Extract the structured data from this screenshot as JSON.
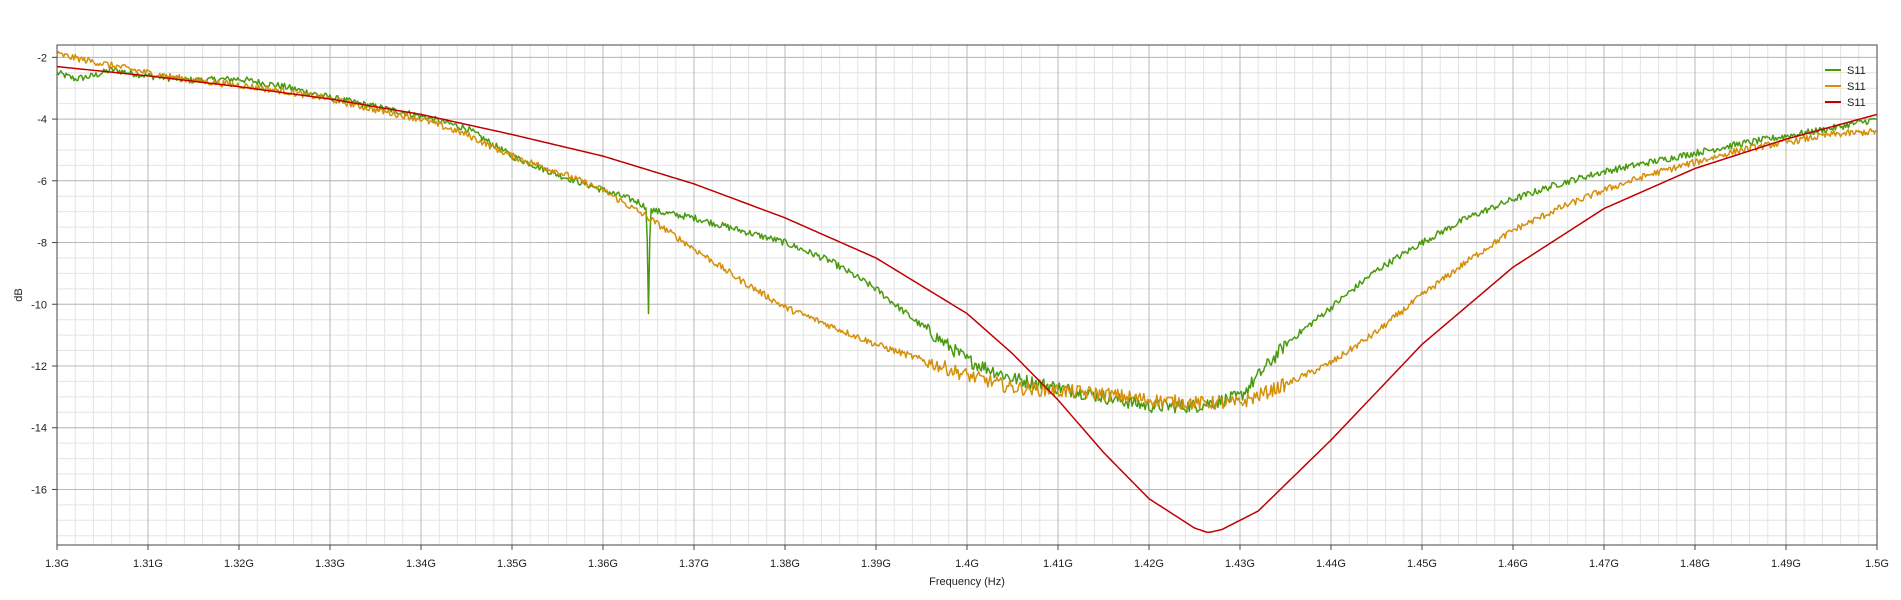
{
  "chart_data": {
    "type": "line",
    "title": "",
    "xlabel": "Frequency (Hz)",
    "ylabel": "dB",
    "xlim": [
      1.3,
      1.5
    ],
    "ylim": [
      -17.8,
      -1.6
    ],
    "x_ticks": [
      1.3,
      1.31,
      1.32,
      1.33,
      1.34,
      1.35,
      1.36,
      1.37,
      1.38,
      1.39,
      1.4,
      1.41,
      1.42,
      1.43,
      1.44,
      1.45,
      1.46,
      1.47,
      1.48,
      1.49,
      1.5
    ],
    "x_tick_labels": [
      "1.3G",
      "1.31G",
      "1.32G",
      "1.33G",
      "1.34G",
      "1.35G",
      "1.36G",
      "1.37G",
      "1.38G",
      "1.39G",
      "1.4G",
      "1.41G",
      "1.42G",
      "1.43G",
      "1.44G",
      "1.45G",
      "1.46G",
      "1.47G",
      "1.48G",
      "1.49G",
      "1.5G"
    ],
    "y_ticks": [
      -2,
      -4,
      -6,
      -8,
      -10,
      -12,
      -14,
      -16
    ],
    "y_tick_labels": [
      "-2",
      "-4",
      "-6",
      "-8",
      "-10",
      "-12",
      "-14",
      "-16"
    ],
    "grid": true,
    "legend_position": "top-right",
    "series": [
      {
        "name": "S11",
        "color": "#4a9a10",
        "x": [
          1.3,
          1.302,
          1.304,
          1.306,
          1.31,
          1.315,
          1.32,
          1.325,
          1.33,
          1.335,
          1.34,
          1.345,
          1.35,
          1.355,
          1.36,
          1.364,
          1.3648,
          1.365,
          1.3652,
          1.366,
          1.37,
          1.375,
          1.38,
          1.385,
          1.39,
          1.395,
          1.4,
          1.405,
          1.41,
          1.415,
          1.42,
          1.425,
          1.43,
          1.435,
          1.44,
          1.445,
          1.45,
          1.455,
          1.46,
          1.465,
          1.47,
          1.475,
          1.48,
          1.485,
          1.49,
          1.495,
          1.5
        ],
        "y": [
          -2.5,
          -2.7,
          -2.6,
          -2.4,
          -2.6,
          -2.75,
          -2.7,
          -2.95,
          -3.3,
          -3.6,
          -3.9,
          -4.3,
          -5.2,
          -5.8,
          -6.3,
          -6.7,
          -6.9,
          -10.3,
          -6.9,
          -7.0,
          -7.2,
          -7.6,
          -8.0,
          -8.6,
          -9.5,
          -10.7,
          -11.8,
          -12.4,
          -12.7,
          -13.0,
          -13.3,
          -13.3,
          -13.0,
          -11.3,
          -10.1,
          -8.9,
          -8.0,
          -7.2,
          -6.6,
          -6.1,
          -5.7,
          -5.4,
          -5.1,
          -4.8,
          -4.55,
          -4.3,
          -4.0
        ]
      },
      {
        "name": "S11",
        "color": "#d4900a",
        "x": [
          1.3,
          1.305,
          1.31,
          1.315,
          1.32,
          1.325,
          1.33,
          1.335,
          1.34,
          1.345,
          1.35,
          1.355,
          1.36,
          1.365,
          1.37,
          1.375,
          1.38,
          1.385,
          1.39,
          1.395,
          1.4,
          1.405,
          1.41,
          1.415,
          1.42,
          1.425,
          1.43,
          1.435,
          1.44,
          1.445,
          1.45,
          1.455,
          1.46,
          1.465,
          1.47,
          1.475,
          1.48,
          1.485,
          1.49,
          1.495,
          1.5
        ],
        "y": [
          -1.9,
          -2.2,
          -2.5,
          -2.75,
          -2.9,
          -3.1,
          -3.35,
          -3.7,
          -4.0,
          -4.5,
          -5.2,
          -5.7,
          -6.3,
          -7.2,
          -8.2,
          -9.2,
          -10.1,
          -10.7,
          -11.3,
          -11.8,
          -12.3,
          -12.7,
          -12.8,
          -12.9,
          -13.1,
          -13.2,
          -13.2,
          -12.6,
          -11.9,
          -10.9,
          -9.7,
          -8.6,
          -7.6,
          -6.9,
          -6.3,
          -5.8,
          -5.4,
          -5.0,
          -4.75,
          -4.5,
          -4.4
        ]
      },
      {
        "name": "S11",
        "color": "#c00000",
        "x": [
          1.3,
          1.31,
          1.32,
          1.33,
          1.34,
          1.35,
          1.36,
          1.37,
          1.38,
          1.39,
          1.4,
          1.405,
          1.41,
          1.415,
          1.42,
          1.425,
          1.4265,
          1.428,
          1.432,
          1.44,
          1.45,
          1.46,
          1.47,
          1.48,
          1.49,
          1.5
        ],
        "y": [
          -2.3,
          -2.6,
          -2.95,
          -3.35,
          -3.85,
          -4.5,
          -5.2,
          -6.1,
          -7.2,
          -8.5,
          -10.3,
          -11.6,
          -13.1,
          -14.8,
          -16.3,
          -17.25,
          -17.4,
          -17.3,
          -16.7,
          -14.4,
          -11.3,
          -8.8,
          -6.9,
          -5.6,
          -4.65,
          -3.85
        ]
      }
    ]
  }
}
